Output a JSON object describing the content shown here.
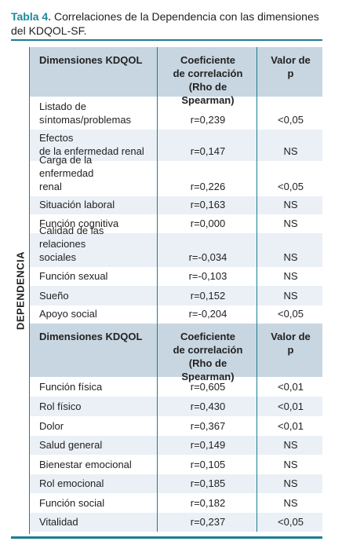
{
  "title": {
    "label": "Tabla 4.",
    "text": "Correlaciones de la Dependencia con las dimensiones del KDQOL-SF."
  },
  "side_label": "DEPENDENCIA",
  "sections": [
    {
      "header": [
        "Dimensiones KDQOL",
        "Coeficiente\nde correlación\n(Rho de Spearman)",
        "Valor de p"
      ],
      "rows": [
        [
          "Listado de\nsíntomas/problemas",
          "r=0,239",
          "<0,05"
        ],
        [
          "Efectos\nde la enfermedad renal",
          "r=0,147",
          "NS"
        ],
        [
          "Carga de la enfermedad\nrenal",
          "r=0,226",
          "<0,05"
        ],
        [
          "Situación laboral",
          "r=0,163",
          "NS"
        ],
        [
          "Función cognitiva",
          "r=0,000",
          "NS"
        ],
        [
          "Calidad de las relaciones\nsociales",
          "r=-0,034",
          "NS"
        ],
        [
          "Función sexual",
          "r=-0,103",
          "NS"
        ],
        [
          "Sueño",
          "r=0,152",
          "NS"
        ],
        [
          "Apoyo social",
          "r=-0,204",
          "<0,05"
        ]
      ]
    },
    {
      "header": [
        "Dimensiones KDQOL",
        "Coeficiente\nde correlación\n(Rho de Spearman)",
        "Valor de p"
      ],
      "rows": [
        [
          "Función física",
          "r=0,605",
          "<0,01"
        ],
        [
          "Rol físico",
          "r=0,430",
          "<0,01"
        ],
        [
          "Dolor",
          "r=0,367",
          "<0,01"
        ],
        [
          "Salud general",
          "r=0,149",
          "NS"
        ],
        [
          "Bienestar emocional",
          "r=0,105",
          "NS"
        ],
        [
          "Rol emocional",
          "r=0,185",
          "NS"
        ],
        [
          "Función social",
          "r=0,182",
          "NS"
        ],
        [
          "Vitalidad",
          "r=0,237",
          "<0,05"
        ]
      ]
    }
  ]
}
